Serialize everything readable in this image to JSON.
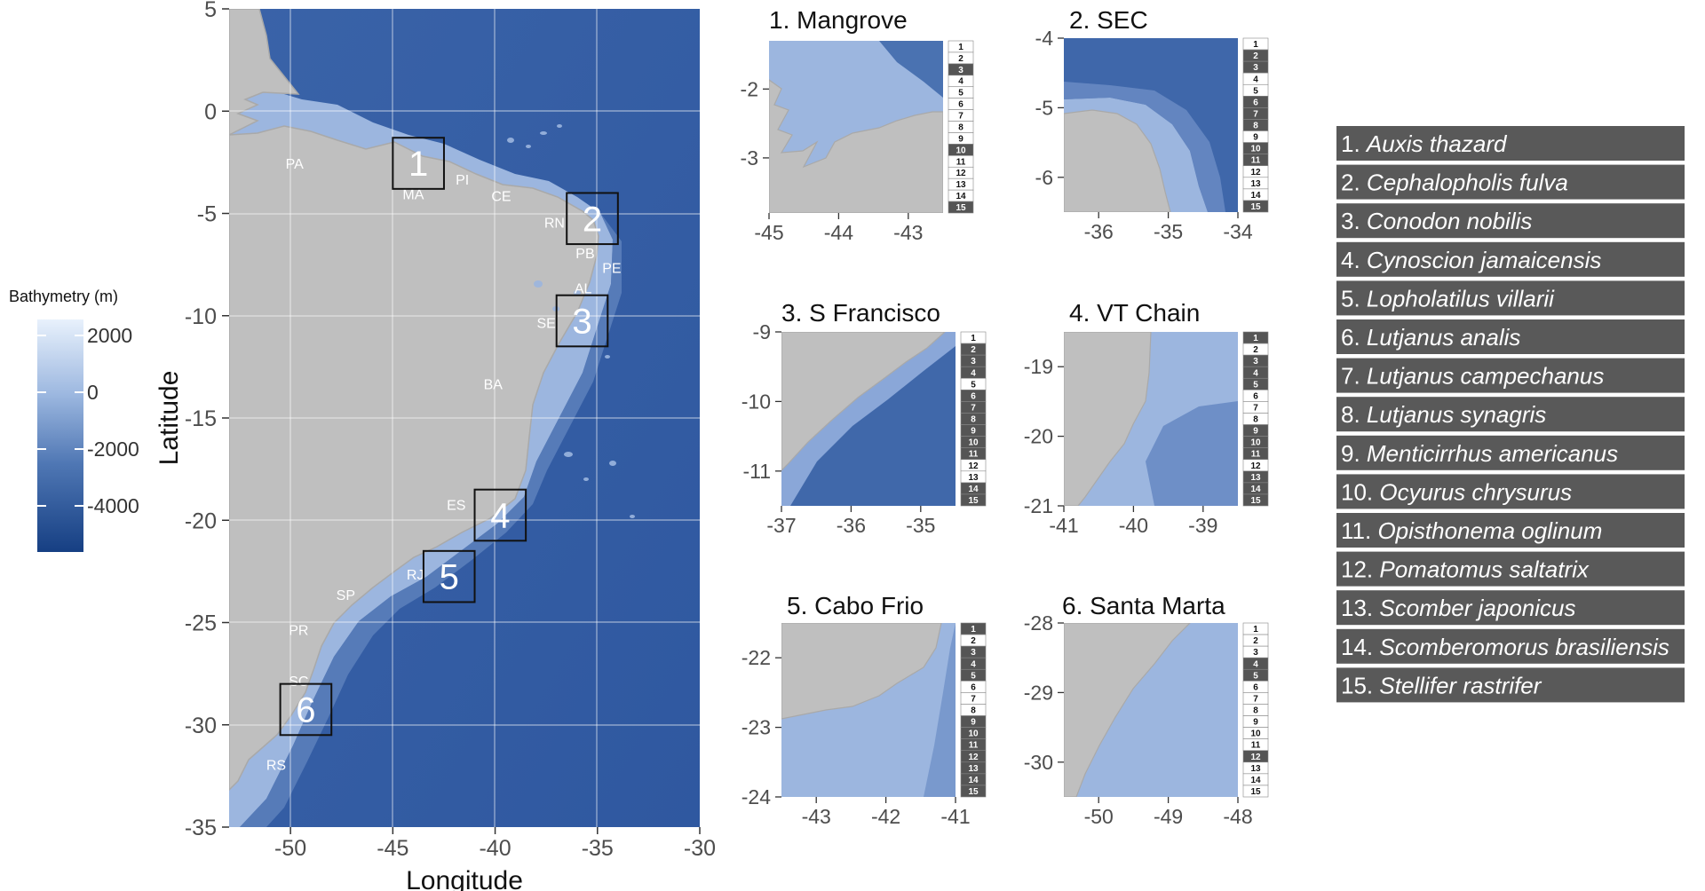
{
  "legend": {
    "title": "Bathymetry (m)",
    "labels": [
      "2000",
      "0",
      "-2000",
      "-4000"
    ],
    "gradient": [
      "#e8f1fc",
      "#9db8e0",
      "#4f77b4",
      "#163f83"
    ]
  },
  "main_map": {
    "x_label": "Longitude",
    "y_label": "Latitude",
    "xlim": [
      -53,
      -30
    ],
    "ylim": [
      -35,
      5
    ],
    "x_ticks": [
      "-50",
      "-45",
      "-40",
      "-35",
      "-30"
    ],
    "y_ticks": [
      "5",
      "0",
      "-5",
      "-10",
      "-15",
      "-20",
      "-25",
      "-30",
      "-35"
    ],
    "land_color": "#bfbfbf",
    "ocean_color": "#3d66aa",
    "shelf_color": "#9cb6df",
    "states": [
      {
        "label": "PA",
        "lon": -49.8,
        "lat": -2.8
      },
      {
        "label": "MA",
        "lon": -44.0,
        "lat": -4.3
      },
      {
        "label": "PI",
        "lon": -41.6,
        "lat": -3.6
      },
      {
        "label": "CE",
        "lon": -39.7,
        "lat": -4.4
      },
      {
        "label": "RN",
        "lon": -37.1,
        "lat": -5.7
      },
      {
        "label": "PB",
        "lon": -35.6,
        "lat": -7.2
      },
      {
        "label": "PE",
        "lon": -34.3,
        "lat": -7.9
      },
      {
        "label": "AL",
        "lon": -35.7,
        "lat": -8.9
      },
      {
        "label": "SE",
        "lon": -37.5,
        "lat": -10.6
      },
      {
        "label": "BA",
        "lon": -40.1,
        "lat": -13.6
      },
      {
        "label": "ES",
        "lon": -41.9,
        "lat": -19.5
      },
      {
        "label": "RJ",
        "lon": -43.9,
        "lat": -22.9
      },
      {
        "label": "SP",
        "lon": -47.3,
        "lat": -23.9
      },
      {
        "label": "PR",
        "lon": -49.6,
        "lat": -25.6
      },
      {
        "label": "SC",
        "lon": -49.6,
        "lat": -28.1
      },
      {
        "label": "RS",
        "lon": -50.7,
        "lat": -32.2
      }
    ],
    "boxes": [
      {
        "label": "1",
        "lon": [
          -45.0,
          -42.5
        ],
        "lat": [
          -3.8,
          -1.3
        ]
      },
      {
        "label": "2",
        "lon": [
          -36.5,
          -34.0
        ],
        "lat": [
          -6.5,
          -4.0
        ]
      },
      {
        "label": "3",
        "lon": [
          -37.0,
          -34.5
        ],
        "lat": [
          -11.5,
          -9.0
        ]
      },
      {
        "label": "4",
        "lon": [
          -41.0,
          -38.5
        ],
        "lat": [
          -21.0,
          -18.5
        ]
      },
      {
        "label": "5",
        "lon": [
          -43.5,
          -41.0
        ],
        "lat": [
          -24.0,
          -21.5
        ]
      },
      {
        "label": "6",
        "lon": [
          -50.5,
          -48.0
        ],
        "lat": [
          -30.5,
          -28.0
        ]
      }
    ]
  },
  "panels": [
    {
      "title": "1. Mangrove",
      "x_ticks": [
        "-45",
        "-44",
        "-43"
      ],
      "xlim": [
        -45,
        -42.5
      ],
      "y_ticks": [
        "-2",
        "-3"
      ],
      "ylim": [
        -3.8,
        -1.3
      ],
      "present": [
        3,
        10,
        15
      ]
    },
    {
      "title": "2. SEC",
      "x_ticks": [
        "-36",
        "-35",
        "-34"
      ],
      "xlim": [
        -36.5,
        -34
      ],
      "y_ticks": [
        "-4",
        "-5",
        "-6"
      ],
      "ylim": [
        -6.5,
        -4
      ],
      "present": [
        2,
        3,
        6,
        7,
        8,
        10,
        11,
        15
      ]
    },
    {
      "title": "3. S Francisco",
      "x_ticks": [
        "-37",
        "-36",
        "-35"
      ],
      "xlim": [
        -37,
        -34.5
      ],
      "y_ticks": [
        "-9",
        "-10",
        "-11"
      ],
      "ylim": [
        -11.5,
        -9
      ],
      "present": [
        2,
        3,
        4,
        6,
        7,
        8,
        9,
        10,
        11,
        14,
        15
      ]
    },
    {
      "title": "4. VT Chain",
      "x_ticks": [
        "-41",
        "-40",
        "-39"
      ],
      "xlim": [
        -41,
        -38.5
      ],
      "y_ticks": [
        "-19",
        "-20",
        "-21"
      ],
      "ylim": [
        -21,
        -18.5
      ],
      "present": [
        1,
        3,
        4,
        5,
        9,
        10,
        11,
        13,
        14,
        15
      ]
    },
    {
      "title": "5. Cabo Frio",
      "x_ticks": [
        "-43",
        "-42",
        "-41"
      ],
      "xlim": [
        -43.5,
        -41
      ],
      "y_ticks": [
        "-22",
        "-23",
        "-24"
      ],
      "ylim": [
        -24,
        -21.5
      ],
      "present": [
        1,
        3,
        4,
        5,
        9,
        10,
        11,
        12,
        13,
        14,
        15
      ]
    },
    {
      "title": "6. Santa Marta",
      "x_ticks": [
        "-50",
        "-49",
        "-48"
      ],
      "xlim": [
        -50.5,
        -48
      ],
      "y_ticks": [
        "-28",
        "-29",
        "-30"
      ],
      "ylim": [
        -30.5,
        -28
      ],
      "present": [
        4,
        5,
        12
      ]
    }
  ],
  "species": [
    {
      "num": "1.",
      "name": "Auxis thazard"
    },
    {
      "num": "2.",
      "name": "Cephalopholis fulva"
    },
    {
      "num": "3.",
      "name": "Conodon nobilis"
    },
    {
      "num": "4.",
      "name": "Cynoscion jamaicensis"
    },
    {
      "num": "5.",
      "name": "Lopholatilus villarii"
    },
    {
      "num": "6.",
      "name": "Lutjanus analis"
    },
    {
      "num": "7.",
      "name": "Lutjanus campechanus"
    },
    {
      "num": "8.",
      "name": "Lutjanus synagris"
    },
    {
      "num": "9.",
      "name": "Menticirrhus americanus"
    },
    {
      "num": "10.",
      "name": "Ocyurus chrysurus"
    },
    {
      "num": "11.",
      "name": "Opisthonema oglinum"
    },
    {
      "num": "12.",
      "name": "Pomatomus saltatrix"
    },
    {
      "num": "13.",
      "name": "Scomber japonicus"
    },
    {
      "num": "14.",
      "name": "Scomberomorus brasiliensis"
    },
    {
      "num": "15.",
      "name": "Stellifer rastrifer"
    }
  ]
}
